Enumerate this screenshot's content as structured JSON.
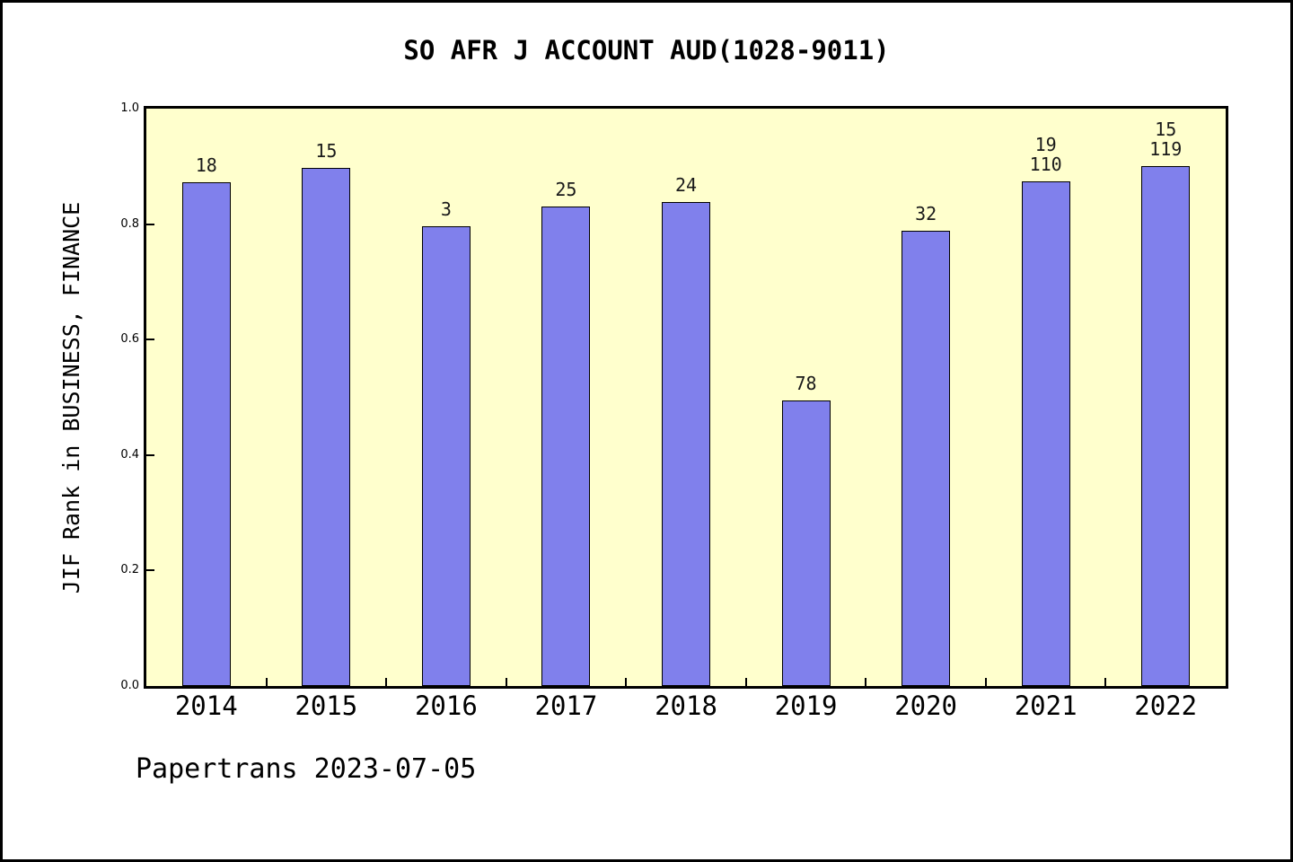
{
  "title": "SO AFR J ACCOUNT AUD(1028-9011)",
  "footer": "Papertrans 2023-07-05",
  "chart_data": {
    "type": "bar",
    "title": "SO AFR J ACCOUNT AUD(1028-9011)",
    "xlabel": "",
    "ylabel": "JIF Rank in BUSINESS, FINANCE",
    "categories": [
      "2014",
      "2015",
      "2016",
      "2017",
      "2018",
      "2019",
      "2020",
      "2021",
      "2022"
    ],
    "values": [
      0.872,
      0.897,
      0.797,
      0.831,
      0.838,
      0.495,
      0.788,
      0.874,
      0.9
    ],
    "bar_labels": [
      [
        "18"
      ],
      [
        "15"
      ],
      [
        "3"
      ],
      [
        "25"
      ],
      [
        "24"
      ],
      [
        "78"
      ],
      [
        "32"
      ],
      [
        "19",
        "110"
      ],
      [
        "15",
        "119"
      ]
    ],
    "ylim": [
      0,
      1
    ],
    "ytick_labels": [
      "0.0",
      "0.2",
      "0.4",
      "0.6",
      "0.8",
      "1.0"
    ],
    "grid": false,
    "legend_position": "none",
    "colors": {
      "bar_fill": "#8080ec",
      "bar_edge": "#000000",
      "plot_bg": "#ffffcd",
      "frame": "#000000",
      "text": "#000000",
      "page_bg": "#ffffff"
    }
  }
}
